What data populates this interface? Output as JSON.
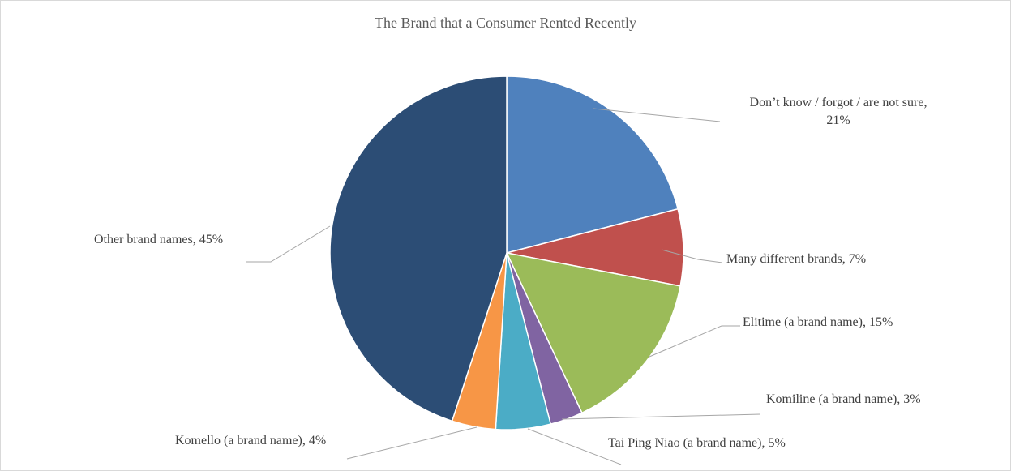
{
  "chart_data": {
    "type": "pie",
    "title": "The Brand that a Consumer Rented Recently",
    "slices": [
      {
        "label": "Don’t know / forgot / are not sure",
        "value": 21,
        "value_label": "21%",
        "color": "#4f81bd"
      },
      {
        "label": "Many different brands",
        "value": 7,
        "value_label": "7%",
        "color": "#c0504d"
      },
      {
        "label": "Elitime (a brand name)",
        "value": 15,
        "value_label": "15%",
        "color": "#9bbb59"
      },
      {
        "label": "Komiline (a brand name)",
        "value": 3,
        "value_label": "3%",
        "color": "#8064a2"
      },
      {
        "label": "Tai Ping Niao (a brand name)",
        "value": 5,
        "value_label": "5%",
        "color": "#4bacc6"
      },
      {
        "label": "Komello (a brand name)",
        "value": 4,
        "value_label": "4%",
        "color": "#f79646"
      },
      {
        "label": "Other brand names",
        "value": 45,
        "value_label": "45%",
        "color": "#2c4d75"
      }
    ],
    "data_labels": [
      [
        "Don’t know / forgot / are not sure,",
        "21%"
      ],
      [
        "Many different brands, 7%"
      ],
      [
        "Elitime (a brand name), 15%"
      ],
      [
        "Komiline (a brand name), 3%"
      ],
      [
        "Tai Ping Niao (a brand name), 5%"
      ],
      [
        "Komello (a brand name), 4%"
      ],
      [
        "Other brand names, 45%"
      ]
    ]
  }
}
